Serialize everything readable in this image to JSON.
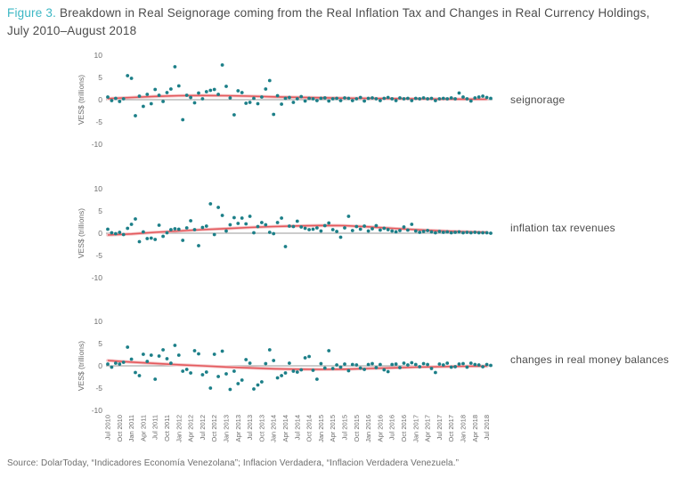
{
  "figure": {
    "label": "Figure 3.",
    "title": "Breakdown in Real Seignorage coming from the Real Inflation Tax and Changes in Real Currency Holdings, July 2010–August 2018"
  },
  "source": "Source: DolarToday, “Indicadores Economía Venezolana”; Inflacion Verdadera, “Inflacion Verdadera Venezuela.”",
  "colors": {
    "accent_teal": "#3cb7c4",
    "dot": "#1c7f88",
    "trend": "#e4595c",
    "trend_halo": "#f4c4c7",
    "zero_line": "#9a9a9a",
    "axis_text": "#6b6b6b",
    "title_text": "#4c4c4c"
  },
  "x_tick_labels": [
    "Jul 2010",
    "Oct 2010",
    "Jan 2011",
    "Apr 2011",
    "Jul 2011",
    "Oct 2011",
    "Jan 2012",
    "Apr 2012",
    "Jul 2012",
    "Oct 2012",
    "Jan 2013",
    "Apr 2013",
    "Jul 2013",
    "Oct 2013",
    "Jan 2014",
    "Apr 2014",
    "Jul 2014",
    "Oct 2014",
    "Jan 2015",
    "Apr 2015",
    "Jul 2015",
    "Oct 2015",
    "Jan 2016",
    "Apr 2016",
    "Jul 2016",
    "Oct 2016",
    "Jan 2017",
    "Apr 2017",
    "Jul 2017",
    "Oct 2017",
    "Jan 2018",
    "Apr 2018",
    "Jul 2018"
  ],
  "chart_data": [
    {
      "type": "scatter",
      "label": "seignorage",
      "ylabel": "VES$ (trillions)",
      "ylim": [
        -10,
        10
      ],
      "yticks": [
        10,
        5,
        0,
        -5,
        -10
      ],
      "x_start": "Jul 2010",
      "x_end": "Aug 2018",
      "x_unit": "month",
      "points": [
        0.6,
        -0.2,
        0.3,
        -0.4,
        0.2,
        5.4,
        4.8,
        -3.6,
        0.8,
        -1.5,
        1.2,
        -0.9,
        2.3,
        1.0,
        -0.4,
        1.6,
        2.4,
        7.4,
        3.1,
        -4.5,
        1.0,
        0.5,
        -0.7,
        1.5,
        0.2,
        1.8,
        2.1,
        2.3,
        1.2,
        7.8,
        3.0,
        0.4,
        -3.4,
        2.0,
        1.6,
        -0.8,
        -0.6,
        0.3,
        -0.9,
        0.6,
        2.4,
        4.3,
        -3.3,
        0.9,
        -1.0,
        0.3,
        0.5,
        -0.6,
        0.2,
        0.7,
        -0.3,
        0.3,
        0.2,
        -0.2,
        0.3,
        0.4,
        -0.3,
        0.2,
        0.3,
        -0.2,
        0.4,
        0.3,
        -0.2,
        0.2,
        0.5,
        -0.3,
        0.3,
        0.4,
        0.2,
        -0.2,
        0.3,
        0.5,
        0.2,
        -0.2,
        0.4,
        0.2,
        0.3,
        -0.2,
        0.3,
        0.2,
        0.4,
        0.2,
        0.3,
        -0.2,
        0.2,
        0.3,
        0.2,
        0.4,
        0.2,
        1.5,
        0.6,
        0.2,
        -0.3,
        0.4,
        0.6,
        0.8,
        0.5,
        0.3
      ],
      "trend": {
        "step_months": 6,
        "values": [
          0.25,
          0.5,
          0.75,
          0.9,
          0.95,
          0.9,
          0.8,
          0.65,
          0.55,
          0.45,
          0.35,
          0.3,
          0.25,
          0.2,
          0.15,
          0.12,
          0.1
        ]
      }
    },
    {
      "type": "scatter",
      "label": "inflation tax revenues",
      "ylabel": "VES$ (trillions)",
      "ylim": [
        -10,
        10
      ],
      "yticks": [
        10,
        5,
        0,
        -5,
        -10
      ],
      "x_start": "Jul 2010",
      "x_end": "Aug 2018",
      "x_unit": "month",
      "points": [
        0.9,
        0.1,
        -0.1,
        0.2,
        -0.3,
        1.1,
        2.0,
        3.2,
        -1.9,
        0.3,
        -1.2,
        -1.1,
        -1.4,
        1.8,
        -0.7,
        0.1,
        0.8,
        1.0,
        0.9,
        -1.6,
        1.2,
        2.8,
        0.8,
        -2.8,
        1.3,
        1.6,
        6.6,
        -0.3,
        5.8,
        4.0,
        0.5,
        1.9,
        3.5,
        2.2,
        3.4,
        2.1,
        3.8,
        0.1,
        1.5,
        2.4,
        1.9,
        0.2,
        -0.1,
        2.4,
        3.4,
        -3.0,
        1.6,
        1.5,
        2.7,
        1.4,
        1.1,
        0.8,
        0.9,
        1.2,
        0.5,
        1.7,
        2.3,
        0.8,
        0.4,
        -0.9,
        1.2,
        3.8,
        0.6,
        1.5,
        0.9,
        1.6,
        0.5,
        1.0,
        1.7,
        0.7,
        1.1,
        0.8,
        0.5,
        0.3,
        0.6,
        1.4,
        0.7,
        2.0,
        0.5,
        0.2,
        0.4,
        0.6,
        0.3,
        0.1,
        0.4,
        0.2,
        0.3,
        0.1,
        0.2,
        0.3,
        0.1,
        0.2,
        0.1,
        0.2,
        0.1,
        0.1,
        0.1,
        0.0
      ],
      "trend": {
        "step_months": 6,
        "values": [
          -0.4,
          -0.15,
          0.2,
          0.5,
          0.8,
          1.05,
          1.3,
          1.5,
          1.65,
          1.75,
          1.7,
          1.45,
          1.1,
          0.8,
          0.55,
          0.35,
          0.2
        ]
      }
    },
    {
      "type": "scatter",
      "label": "changes in real money balances",
      "ylabel": "VES$ (trillions)",
      "ylim": [
        -10,
        10
      ],
      "yticks": [
        10,
        5,
        0,
        -5,
        -10
      ],
      "x_start": "Jul 2010",
      "x_end": "Aug 2018",
      "x_unit": "month",
      "points": [
        0.4,
        -0.3,
        0.6,
        0.4,
        0.8,
        4.2,
        1.5,
        -1.5,
        -2.2,
        2.6,
        1.0,
        2.4,
        -3.0,
        2.2,
        3.6,
        1.6,
        0.6,
        4.6,
        2.4,
        -1.2,
        -0.8,
        -1.6,
        3.4,
        2.7,
        -2.0,
        -1.4,
        -5.0,
        2.6,
        -2.4,
        3.3,
        -1.8,
        -5.3,
        -1.2,
        -4.0,
        -3.2,
        1.4,
        0.6,
        -5.2,
        -4.3,
        -3.6,
        0.5,
        3.6,
        1.2,
        -2.7,
        -2.2,
        -1.6,
        0.6,
        -1.2,
        -1.4,
        -0.9,
        1.8,
        2.1,
        -1.0,
        -3.0,
        0.5,
        -0.5,
        3.4,
        -0.6,
        0.2,
        -0.3,
        0.4,
        -1.1,
        0.3,
        0.2,
        -0.5,
        -0.8,
        0.3,
        0.5,
        -0.4,
        0.3,
        -0.9,
        -1.3,
        0.3,
        0.4,
        -0.4,
        0.6,
        0.2,
        0.7,
        0.3,
        -0.2,
        0.5,
        0.3,
        -0.6,
        -1.5,
        0.4,
        0.2,
        0.6,
        -0.3,
        -0.2,
        0.4,
        0.5,
        -0.3,
        0.6,
        0.3,
        0.2,
        -0.2,
        0.3,
        0.1
      ],
      "trend": {
        "step_months": 6,
        "values": [
          1.2,
          0.85,
          0.55,
          0.25,
          0.0,
          -0.25,
          -0.45,
          -0.65,
          -0.75,
          -0.8,
          -0.75,
          -0.6,
          -0.45,
          -0.3,
          -0.2,
          -0.1,
          -0.05
        ]
      }
    }
  ]
}
